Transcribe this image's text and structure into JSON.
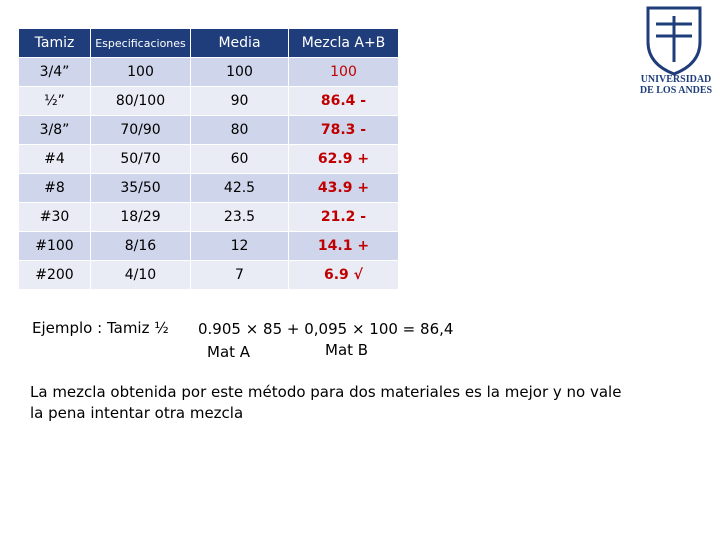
{
  "table": {
    "header": [
      "Tamiz",
      "Especificaciones",
      "Media",
      "Mezcla A+B"
    ],
    "rows": [
      [
        "3/4”",
        "100",
        "100",
        "100"
      ],
      [
        "½”",
        "80/100",
        "90",
        "86.4 -"
      ],
      [
        "3/8”",
        "70/90",
        "80",
        "78.3 -"
      ],
      [
        "#4",
        "50/70",
        "60",
        "62.9 +"
      ],
      [
        "#8",
        "35/50",
        "42.5",
        "43.9 +"
      ],
      [
        "#30",
        "18/29",
        "23.5",
        "21.2 -"
      ],
      [
        "#100",
        "8/16",
        "12",
        "14.1 +"
      ],
      [
        "#200",
        "4/10",
        "7",
        "6.9 √"
      ]
    ]
  },
  "example": {
    "label": "Ejemplo : Tamiz ½",
    "formula": "0.905 × 85 + 0,095 × 100 = 86,4",
    "mat_a": "Mat A",
    "mat_b": "Mat B"
  },
  "conclusion": "La mezcla obtenida por este método para dos materiales es la mejor y no vale la pena intentar otra mezcla",
  "logo": {
    "line1": "UNIVERSIDAD",
    "line2": "DE LOS ANDES"
  }
}
